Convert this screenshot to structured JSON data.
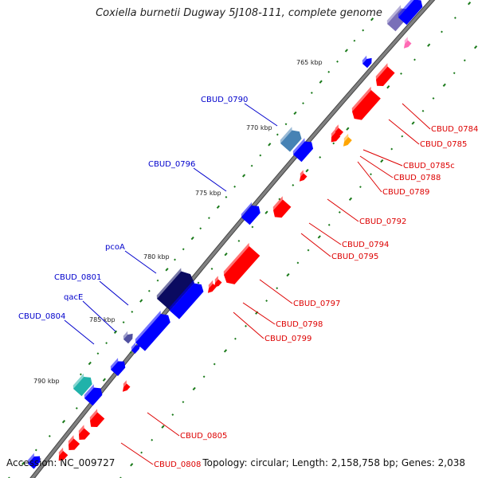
{
  "title": "Coxiella burnetii Dugway 5J108-111, complete genome",
  "accession": "Accession: NC_009727",
  "summary": "Topology: circular; Length: 2,158,758 bp; Genes: 2,038",
  "colors": {
    "forward_gene": "#0000ff",
    "reverse_gene": "#ff0000",
    "forward_label": "#0000cc",
    "reverse_label": "#dd0000",
    "backbone": "#808080",
    "gc_dots": "#1a7a1a"
  },
  "ticks": [
    {
      "label": "765 kbp"
    },
    {
      "label": "770 kbp"
    },
    {
      "label": "775 kbp"
    },
    {
      "label": "780 kbp"
    },
    {
      "label": "785 kbp"
    },
    {
      "label": "790 kbp"
    }
  ],
  "forward_labels": [
    {
      "text": "CBUD_0790"
    },
    {
      "text": "CBUD_0796"
    },
    {
      "text": "pcoA"
    },
    {
      "text": "CBUD_0801"
    },
    {
      "text": "qacE"
    },
    {
      "text": "CBUD_0804"
    }
  ],
  "reverse_labels": [
    {
      "text": "CBUD_0784"
    },
    {
      "text": "CBUD_0785"
    },
    {
      "text": "CBUD_0785c"
    },
    {
      "text": "CBUD_0788"
    },
    {
      "text": "CBUD_0789"
    },
    {
      "text": "CBUD_0792"
    },
    {
      "text": "CBUD_0794"
    },
    {
      "text": "CBUD_0795"
    },
    {
      "text": "CBUD_0797"
    },
    {
      "text": "CBUD_0798"
    },
    {
      "text": "CBUD_0799"
    },
    {
      "text": "CBUD_0805"
    },
    {
      "text": "CBUD_0808"
    }
  ]
}
